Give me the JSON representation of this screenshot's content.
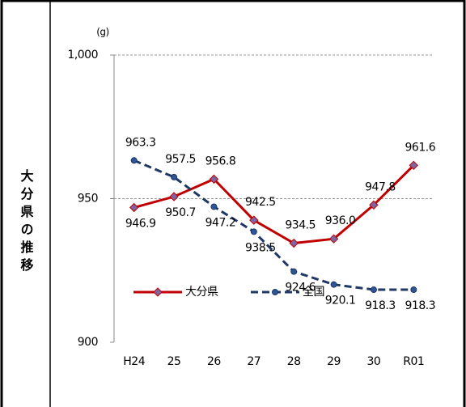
{
  "side_label": "大分県の推移",
  "chart_data": {
    "type": "line",
    "y_unit": "(g)",
    "categories": [
      "H24",
      "25",
      "26",
      "27",
      "28",
      "29",
      "30",
      "R01"
    ],
    "series": [
      {
        "name": "大分県",
        "color": "#c00000",
        "marker_color": "#8064a2",
        "marker": "diamond",
        "dash": false,
        "values": [
          946.9,
          950.7,
          956.8,
          942.5,
          934.5,
          936.0,
          947.8,
          961.6
        ],
        "value_labels": [
          "946.9",
          "950.7",
          "956.8",
          "942.5",
          "934.5",
          "936.0",
          "947.8",
          "961.6"
        ]
      },
      {
        "name": "全国",
        "color": "#1f3864",
        "marker_color": "#2e5597",
        "marker": "circle",
        "dash": true,
        "values": [
          963.3,
          957.5,
          947.2,
          938.5,
          924.6,
          920.1,
          918.3,
          918.3
        ],
        "value_labels": [
          "963.3",
          "957.5",
          "947.2",
          "938.5",
          "924.6",
          "920.1",
          "918.3",
          "918.3"
        ]
      }
    ],
    "ylim": [
      900,
      1000
    ],
    "yticks": [
      900,
      950,
      {
        "value": 1000,
        "label": "1,000"
      }
    ],
    "grid": true
  }
}
